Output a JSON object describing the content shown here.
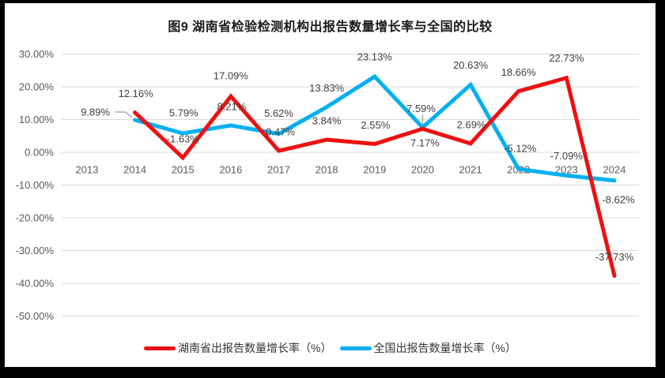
{
  "chart_data": {
    "type": "line",
    "title": "图9 湖南省检验检测机构出报告数量增长率与全国的比较",
    "categories": [
      "2013",
      "2014",
      "2015",
      "2016",
      "2017",
      "2018",
      "2019",
      "2020",
      "2021",
      "2022",
      "2023",
      "2024"
    ],
    "y_axis": {
      "ticks": [
        "30.00%",
        "20.00%",
        "10.00%",
        "0.00%",
        "-10.00%",
        "-20.00%",
        "-30.00%",
        "-40.00%",
        "-50.00%"
      ],
      "max": 30,
      "min": -50,
      "step": 10
    },
    "grid": true,
    "legend_position": "bottom",
    "series": [
      {
        "name": "湖南省出报告数量增长率（%）",
        "color": "#ee1111",
        "start_index": 1,
        "values": [
          12.16,
          -1.63,
          17.09,
          0.47,
          3.84,
          2.55,
          7.17,
          2.69,
          18.66,
          22.73,
          -37.73
        ],
        "labels": [
          "12.16%",
          "-1.63%",
          "17.09%",
          "0.47%",
          "3.84%",
          "2.55%",
          "7.17%",
          "2.69%",
          "18.66%",
          "22.73%",
          "-37.73%"
        ],
        "label_offsets": [
          [
            1,
            -24
          ],
          [
            0,
            -24
          ],
          [
            0,
            -26
          ],
          [
            2,
            -24
          ],
          [
            0,
            -24
          ],
          [
            1,
            -24
          ],
          [
            3,
            18
          ],
          [
            1,
            -24
          ],
          [
            0,
            -24
          ],
          [
            0,
            -25
          ],
          [
            0,
            -24
          ]
        ],
        "leaders": []
      },
      {
        "name": "全国出报告数量增长率（%）",
        "color": "#00b0f0",
        "start_index": 1,
        "values": [
          9.89,
          5.79,
          8.21,
          5.62,
          13.83,
          23.13,
          7.59,
          20.63,
          -5.12,
          -7.09,
          -8.62
        ],
        "labels": [
          "9.89%",
          "5.79%",
          "8.21%",
          "5.62%",
          "13.83%",
          "23.13%",
          "7.59%",
          "20.63%",
          "-5.12%",
          "-7.09%",
          "-8.62%"
        ],
        "label_offsets": [
          [
            -50,
            -10
          ],
          [
            1,
            -26
          ],
          [
            1,
            -24
          ],
          [
            0,
            -26
          ],
          [
            0,
            -24
          ],
          [
            0,
            -25
          ],
          [
            -2,
            -24
          ],
          [
            0,
            -25
          ],
          [
            2,
            -26
          ],
          [
            0,
            -25
          ],
          [
            5,
            24
          ]
        ],
        "leaders": [
          {
            "index": 0,
            "type": "bent"
          },
          {
            "index": 6,
            "type": "vertical"
          }
        ]
      }
    ],
    "colors": {
      "grid": "#d9d9d9",
      "label": "#404040",
      "axis_text": "#595959",
      "leader": "#a6a6a6",
      "background": "#ffffff",
      "window_frame": "#000000"
    }
  }
}
